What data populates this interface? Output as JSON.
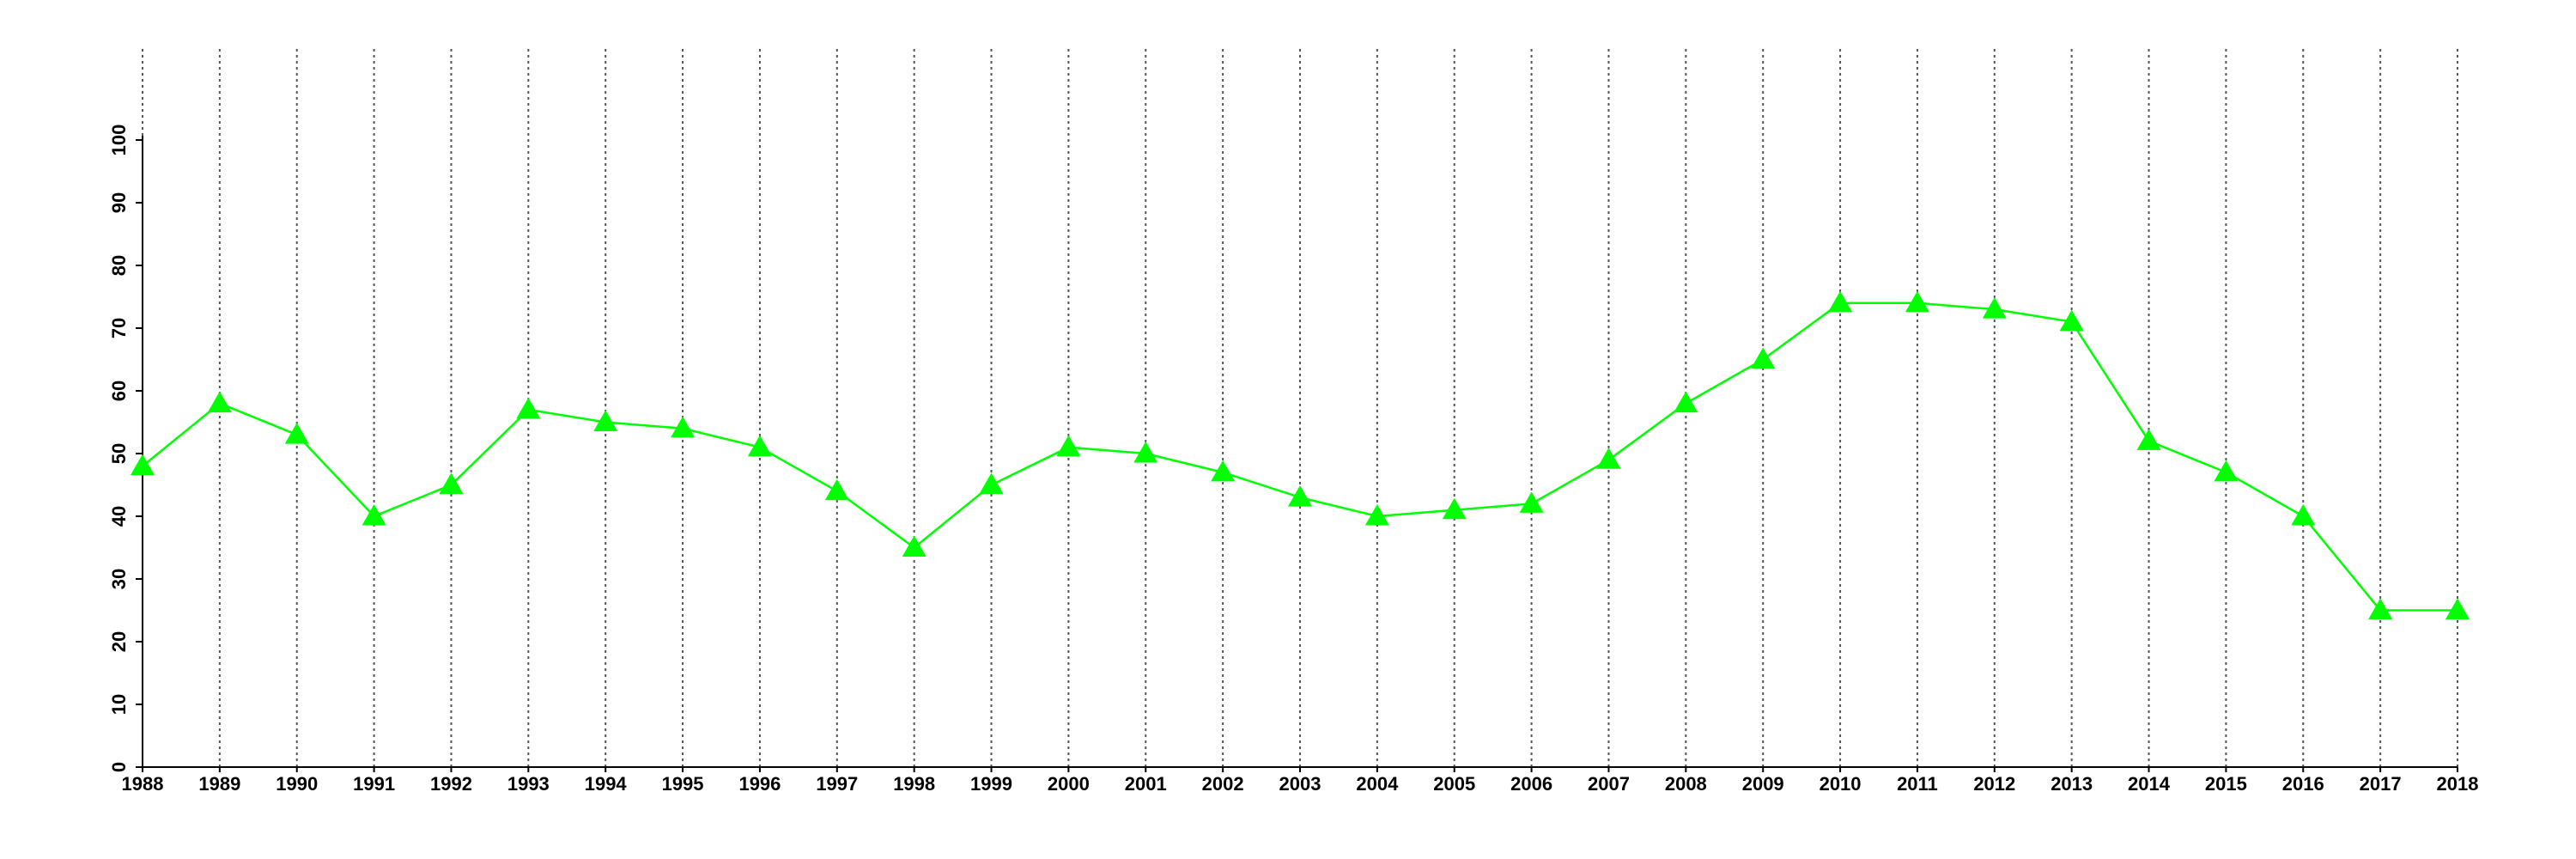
{
  "chart_data": {
    "type": "line",
    "x": [
      1988,
      1989,
      1990,
      1991,
      1992,
      1993,
      1994,
      1995,
      1996,
      1997,
      1998,
      1999,
      2000,
      2001,
      2002,
      2003,
      2004,
      2005,
      2006,
      2007,
      2008,
      2009,
      2010,
      2011,
      2012,
      2013,
      2014,
      2015,
      2016,
      2017,
      2018
    ],
    "series": [
      {
        "color": "#00ff00",
        "marker": "triangle",
        "values": [
          48,
          58,
          53,
          40,
          45,
          57,
          55,
          54,
          51,
          44,
          35,
          45,
          51,
          50,
          47,
          43,
          40,
          41,
          42,
          49,
          58,
          65,
          74,
          74,
          73,
          71,
          52,
          47,
          40,
          25,
          25
        ]
      }
    ],
    "xlim": [
      1988,
      2018
    ],
    "xticks": [
      1988,
      1989,
      1990,
      1991,
      1992,
      1993,
      1994,
      1995,
      1996,
      1997,
      1998,
      1999,
      2000,
      2001,
      2002,
      2003,
      2004,
      2005,
      2006,
      2007,
      2008,
      2009,
      2010,
      2011,
      2012,
      2013,
      2014,
      2015,
      2016,
      2017,
      2018
    ],
    "ylim": [
      0,
      100
    ],
    "yticks": [
      0,
      10,
      20,
      30,
      40,
      50,
      60,
      70,
      80,
      90,
      100
    ],
    "grid": "x"
  }
}
